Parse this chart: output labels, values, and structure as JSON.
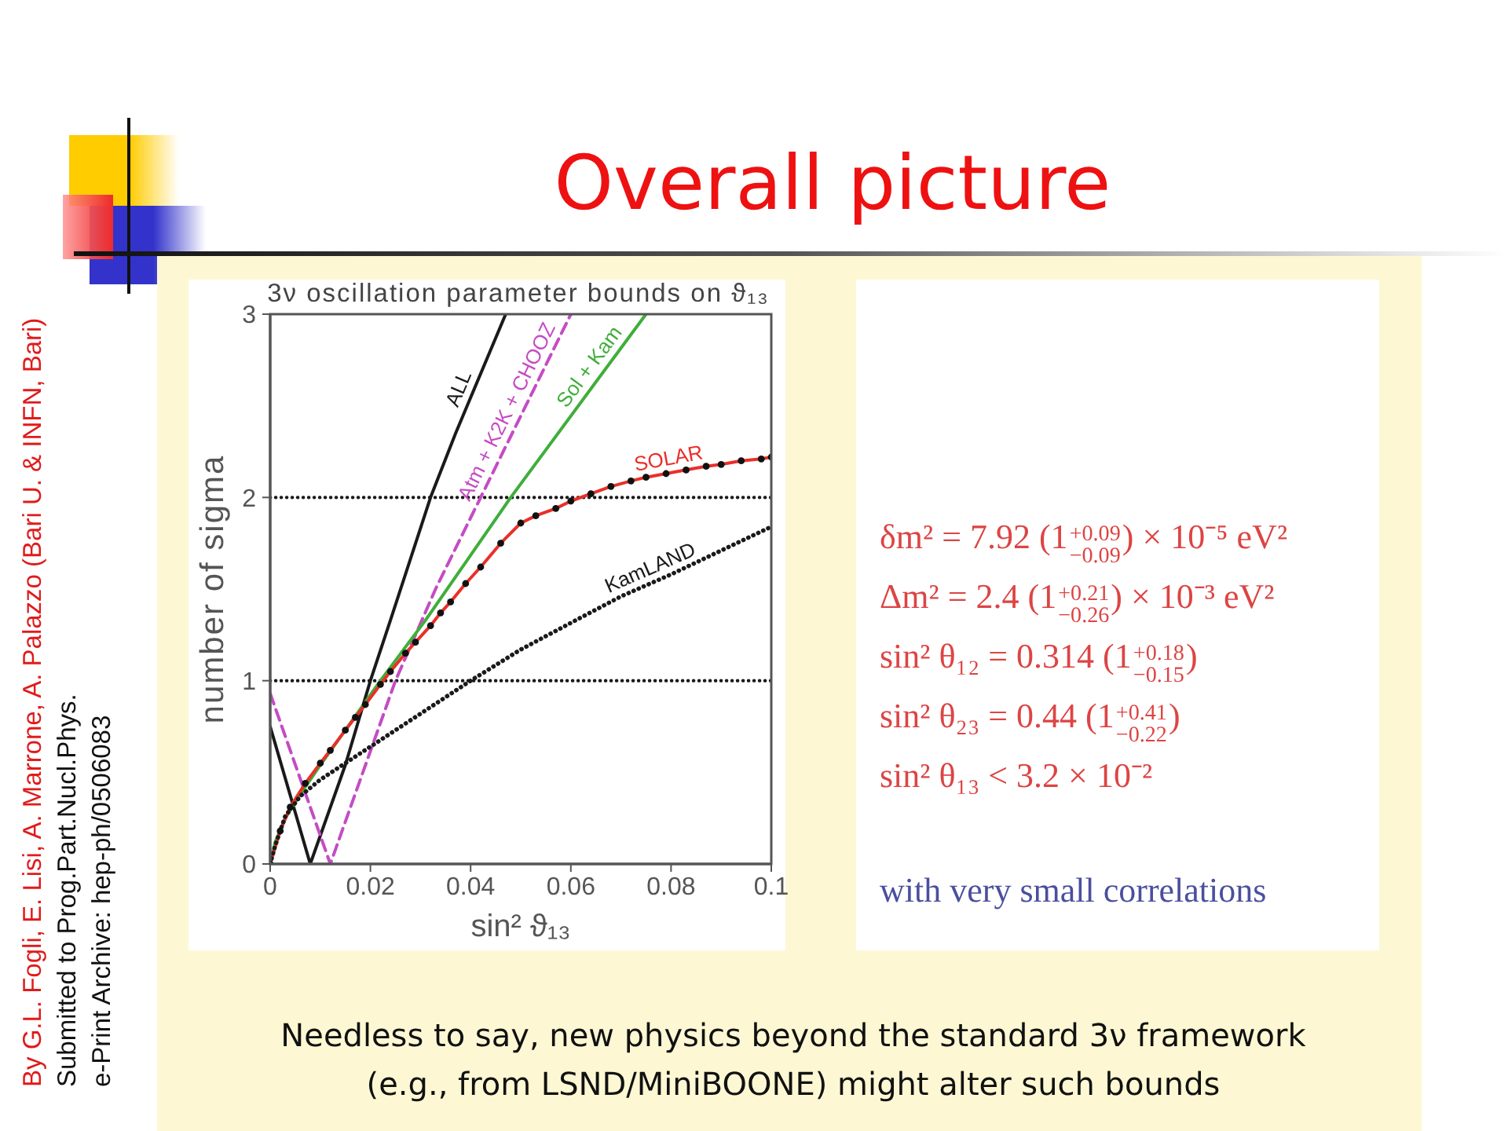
{
  "chart_data": [
    {
      "type": "line",
      "title": "Overall picture",
      "subtitle": "3ν oscillation parameter bounds on ϑ₁₃",
      "xlabel": "sin² ϑ₁₃",
      "ylabel": "number of sigma",
      "xlim": [
        0,
        0.1
      ],
      "xticks": [
        0,
        0.02,
        0.04,
        0.06,
        0.08,
        0.1
      ],
      "ylim": [
        0,
        3
      ],
      "yticks": [
        0,
        1,
        2,
        3
      ],
      "series": [
        {
          "name": "ALL",
          "color": "#1a1a1a",
          "line_style": "solid",
          "x": [
            0,
            0.008,
            0.015,
            0.02,
            0.024,
            0.032,
            0.037,
            0.047
          ],
          "values": [
            0.75,
            0,
            0.54,
            1.0,
            1.33,
            2.0,
            2.35,
            3.0
          ]
        },
        {
          "name": "Atm + K2K + CHOOZ",
          "color": "#c44cc4",
          "line_style": "dashed",
          "x": [
            0,
            0.012,
            0.025,
            0.033,
            0.042,
            0.051,
            0.06
          ],
          "values": [
            0.93,
            0,
            1.0,
            1.5,
            2.0,
            2.5,
            3.0
          ]
        },
        {
          "name": "Sol + Kam",
          "color": "#3fae3a",
          "line_style": "solid",
          "x": [
            0,
            0.001,
            0.003,
            0.006,
            0.01,
            0.015,
            0.022,
            0.031,
            0.048,
            0.075
          ],
          "values": [
            0,
            0.12,
            0.25,
            0.38,
            0.54,
            0.73,
            1.0,
            1.33,
            2.0,
            3.0
          ]
        },
        {
          "name": "SOLAR",
          "color": "#e8302a",
          "line_style": "solid",
          "marker": "circle",
          "x": [
            0,
            0.002,
            0.004,
            0.007,
            0.01,
            0.012,
            0.015,
            0.017,
            0.019,
            0.022,
            0.024,
            0.027,
            0.029,
            0.032,
            0.034,
            0.036,
            0.039,
            0.042,
            0.046,
            0.05,
            0.053,
            0.057,
            0.06,
            0.064,
            0.068,
            0.072,
            0.075,
            0.079,
            0.083,
            0.087,
            0.09,
            0.094,
            0.098,
            0.1
          ],
          "values": [
            0,
            0.18,
            0.31,
            0.44,
            0.55,
            0.62,
            0.73,
            0.8,
            0.87,
            0.98,
            1.05,
            1.15,
            1.21,
            1.3,
            1.37,
            1.43,
            1.53,
            1.62,
            1.75,
            1.86,
            1.9,
            1.94,
            1.98,
            2.02,
            2.06,
            2.09,
            2.11,
            2.13,
            2.15,
            2.17,
            2.18,
            2.2,
            2.21,
            2.22
          ]
        },
        {
          "name": "KamLAND",
          "color": "#1a1a1a",
          "line_style": "dotted",
          "x": [
            0,
            0.001,
            0.002,
            0.003,
            0.006,
            0.01,
            0.015,
            0.02,
            0.03,
            0.04,
            0.05,
            0.061,
            0.07,
            0.08,
            0.09,
            0.1
          ],
          "values": [
            0,
            0.1,
            0.18,
            0.26,
            0.37,
            0.46,
            0.55,
            0.64,
            0.82,
            1.0,
            1.17,
            1.33,
            1.46,
            1.58,
            1.71,
            1.84
          ]
        }
      ],
      "ref_lines": [
        {
          "axis": "y",
          "value": 1,
          "color": "#1a1a1a",
          "line_style": "dotted"
        },
        {
          "axis": "y",
          "value": 2,
          "color": "#1a1a1a",
          "line_style": "dotted"
        }
      ],
      "annotations": [
        "By G.L. Fogli, E. Lisi, A. Marrone, A. Palazzo (Bari U. & INFN, Bari)",
        "Submitted to Prog.Part.Nucl.Phys.",
        "e-Print Archive: hep-ph/0506083",
        "Needless to say, new physics beyond the standard 3ν framework\n(e.g., from LSND/MiniBOONE) might alter such bounds"
      ]
    },
    {
      "type": "other",
      "annotations": [
        "δm² = 7.92 (1$^{+0.09}$$_{−0.09}$) × 10⁻⁵ eV²",
        "Δm² = 2.4 (1$^{+0.21}$$_{−0.26}$) × 10⁻³ eV²",
        "sin² θ₁₂ = 0.314 (1$^{+0.18}$$_{−0.15}$)",
        "sin² θ₂₃ = 0.44 (1$^{+0.41}$$_{−0.22}$)",
        "sin² θ₁₃ < 3.2 × 10⁻²",
        "with very small correlations"
      ]
    }
  ]
}
